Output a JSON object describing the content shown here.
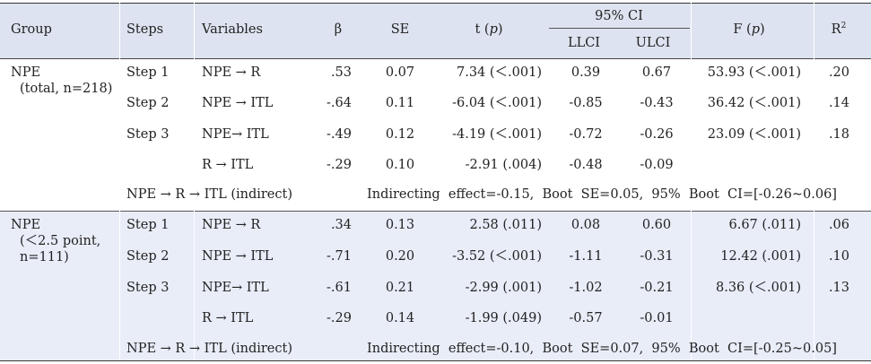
{
  "header": {
    "group": "Group",
    "steps": "Steps",
    "variables": "Variables",
    "beta": "β",
    "se": "SE",
    "t": "t",
    "t_p": "p",
    "ci": "95% CI",
    "llci": "LLCI",
    "ulci": "ULCI",
    "f": "F",
    "f_p": "p",
    "r2": "R",
    "r2_sup": "2"
  },
  "groups": [
    {
      "name": "NPE",
      "name_lines": [
        "(total, n=218)"
      ],
      "rows": [
        {
          "step": "Step 1",
          "var": "NPE → R",
          "beta": ".53",
          "se": "0.07",
          "t": "7.34 (＜.001)",
          "llci": "0.39",
          "ulci": "0.67",
          "f": "53.93 (＜.001)",
          "r2": ".20"
        },
        {
          "step": "Step 2",
          "var": "NPE → ITL",
          "beta": "-.64",
          "se": "0.11",
          "t": "-6.04 (＜.001)",
          "llci": "-0.85",
          "ulci": "-0.43",
          "f": "36.42 (＜.001)",
          "r2": ".14"
        },
        {
          "step": "Step 3",
          "var": "NPE→ ITL",
          "beta": "-.49",
          "se": "0.12",
          "t": "-4.19 (＜.001)",
          "llci": "-0.72",
          "ulci": "-0.26",
          "f": "23.09 (＜.001)",
          "r2": ".18"
        },
        {
          "step": "",
          "var": "R → ITL",
          "beta": "-.29",
          "se": "0.10",
          "t": "-2.91 (.004)",
          "llci": "-0.48",
          "ulci": "-0.09",
          "f": "",
          "r2": ""
        }
      ],
      "indirect_label": "NPE → R → ITL (indirect)",
      "indirect_text": "Indirecting  effect=-0.15,  Boot  SE=0.05,  95%  Boot  CI=[-0.26~0.06]"
    },
    {
      "name": "NPE",
      "name_lines": [
        "(＜2.5 point,",
        "n=111)"
      ],
      "rows": [
        {
          "step": "Step 1",
          "var": "NPE → R",
          "beta": ".34",
          "se": "0.13",
          "t": "2.58 (.011)",
          "llci": "0.08",
          "ulci": "0.60",
          "f": "6.67 (.011)",
          "r2": ".06"
        },
        {
          "step": "Step 2",
          "var": "NPE → ITL",
          "beta": "-.71",
          "se": "0.20",
          "t": "-3.52 (＜.001)",
          "llci": "-1.11",
          "ulci": "-0.31",
          "f": "12.42 (.001)",
          "r2": ".10"
        },
        {
          "step": "Step 3",
          "var": "NPE→ ITL",
          "beta": "-.61",
          "se": "0.21",
          "t": "-2.99 (.001)",
          "llci": "-1.02",
          "ulci": "-0.21",
          "f": "8.36 (＜.001)",
          "r2": ".13"
        },
        {
          "step": "",
          "var": "R → ITL",
          "beta": "-.29",
          "se": "0.14",
          "t": "-1.99 (.049)",
          "llci": "-0.57",
          "ulci": "-0.01",
          "f": "",
          "r2": ""
        }
      ],
      "indirect_label": "NPE → R → ITL (indirect)",
      "indirect_text": "Indirecting  effect=-0.10,  Boot  SE=0.07,  95%  Boot  CI=[-0.25~0.05]"
    }
  ]
}
